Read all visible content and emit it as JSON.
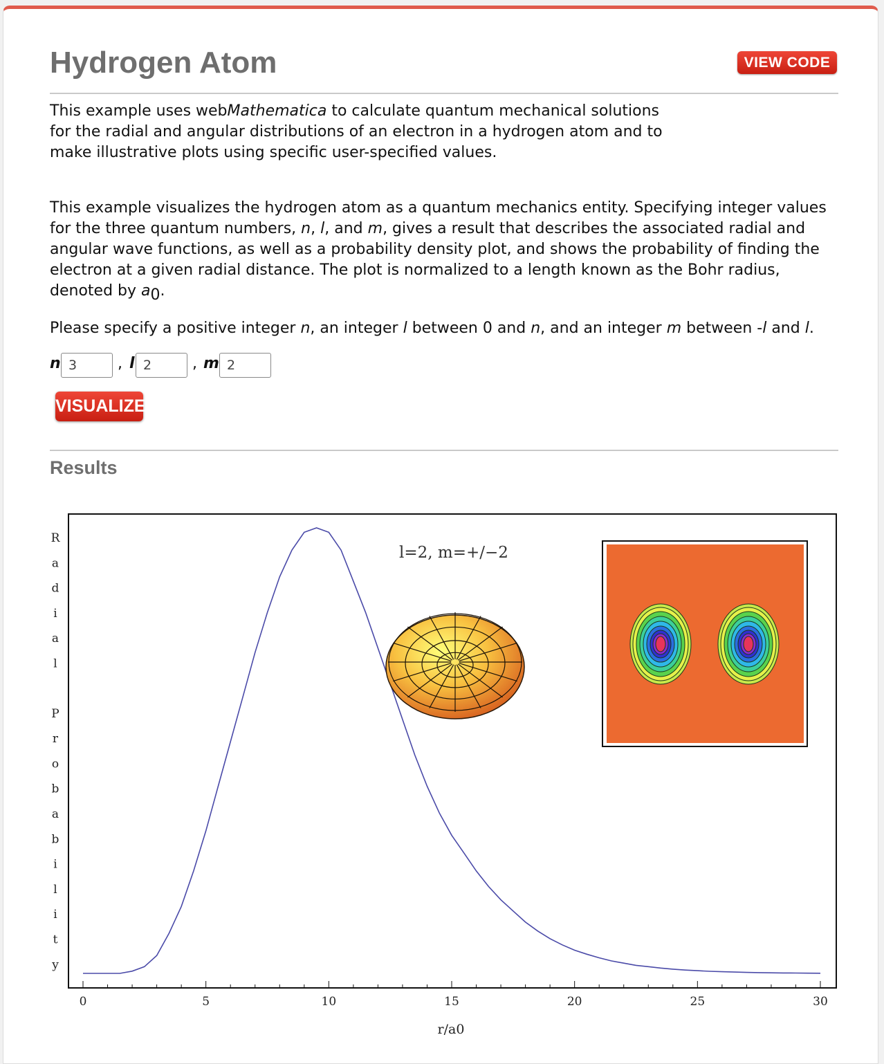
{
  "header": {
    "title": "Hydrogen Atom",
    "view_code_label": "VIEW CODE"
  },
  "intro": {
    "line1_pre": "This example uses web",
    "line1_em": "Mathematica",
    "line1_post": " to calculate quantum mechanical solutions",
    "line2": "for the radial and angular distributions of an electron in a hydrogen atom and to",
    "line3": "make illustrative plots using specific user-specified values."
  },
  "description": {
    "l1": "This example visualizes the hydrogen atom as a quantum mechanics entity. Specifying integer values",
    "l2_a": "for the three quantum numbers, ",
    "l2_n": "n",
    "l2_b": ", ",
    "l2_l": "l",
    "l2_c": ", and ",
    "l2_m": "m",
    "l2_d": ", gives a result that describes the associated radial and",
    "l3": "angular wave functions, as well as a probability density plot, and shows the probability of finding the",
    "l4": "electron at a given radial distance. The plot is normalized to a length known as the Bohr radius,",
    "l5_a": "denoted by ",
    "l5_a_sym": "a",
    "l5_sub": "0",
    "l5_end": "."
  },
  "instructions": {
    "a": "Please specify a positive integer ",
    "n": "n",
    "b": ", an integer ",
    "l": "l",
    "c": " between 0 and ",
    "n2": "n",
    "d": ", and an integer ",
    "m": "m",
    "e": " between -",
    "l2": "l",
    "f": " and ",
    "l3": "l",
    "g": "."
  },
  "form": {
    "n_label": "n",
    "n_value": "3",
    "sep1": ",",
    "l_label": "l",
    "l_value": "2",
    "sep2": ",",
    "m_label": "m",
    "m_value": "2",
    "visualize_label": "VISUALIZE"
  },
  "results": {
    "heading": "Results"
  },
  "colors": {
    "accent": "#d9291b",
    "curve": "#4a4aa8",
    "inset_bg": "#ec6a30"
  },
  "chart_data": {
    "type": "line",
    "xlabel": "r/a0",
    "ylabel": "Radial Probability",
    "annotation": "l=2, m=+/−2",
    "xlim": [
      0,
      30
    ],
    "ylim": [
      0,
      1
    ],
    "xticks": [
      0,
      5,
      10,
      15,
      20,
      25,
      30
    ],
    "series": [
      {
        "x": [
          0,
          0.5,
          1,
          1.5,
          2,
          2.5,
          3,
          3.5,
          4,
          4.5,
          5,
          5.5,
          6,
          6.5,
          7,
          7.5,
          8,
          8.5,
          9,
          9.5,
          10,
          10.5,
          11,
          11.5,
          12,
          12.5,
          13,
          13.5,
          14,
          14.5,
          15,
          15.5,
          16,
          16.5,
          17,
          17.5,
          18,
          18.5,
          19,
          19.5,
          20,
          20.5,
          21,
          21.5,
          22,
          22.5,
          23,
          23.5,
          24,
          24.5,
          25,
          25.5,
          26,
          26.5,
          27,
          27.5,
          28,
          28.5,
          29,
          29.5,
          30
        ],
        "y": [
          0.0,
          0.0,
          0.0,
          0.0,
          0.005,
          0.015,
          0.04,
          0.09,
          0.15,
          0.23,
          0.32,
          0.42,
          0.52,
          0.62,
          0.72,
          0.81,
          0.89,
          0.95,
          0.99,
          1.0,
          0.99,
          0.95,
          0.88,
          0.81,
          0.73,
          0.65,
          0.57,
          0.49,
          0.42,
          0.36,
          0.31,
          0.27,
          0.23,
          0.195,
          0.165,
          0.14,
          0.115,
          0.095,
          0.078,
          0.064,
          0.052,
          0.043,
          0.035,
          0.028,
          0.023,
          0.018,
          0.015,
          0.012,
          0.0095,
          0.0075,
          0.006,
          0.0047,
          0.0037,
          0.0029,
          0.0022,
          0.0017,
          0.0013,
          0.001,
          0.0007,
          0.0005,
          0.0003
        ]
      }
    ]
  }
}
